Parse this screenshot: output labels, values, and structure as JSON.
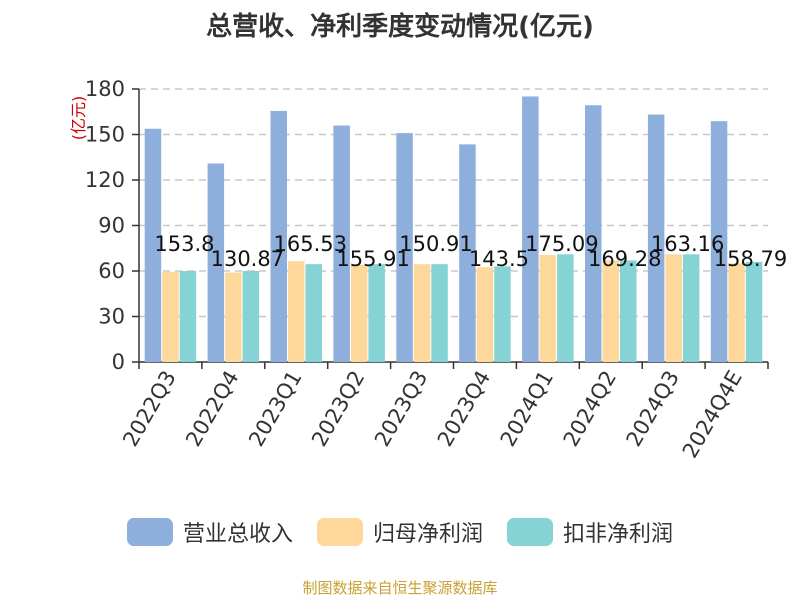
{
  "chart_data": {
    "type": "bar",
    "title": "总营收、净利季度变动情况(亿元)",
    "ylabel": "(亿元)",
    "ylim": [
      0,
      180
    ],
    "yticks": [
      0,
      30,
      60,
      90,
      120,
      150,
      180
    ],
    "grid": true,
    "legend_position": "bottom",
    "categories": [
      "2022Q3",
      "2022Q4",
      "2023Q1",
      "2023Q2",
      "2023Q3",
      "2023Q4",
      "2024Q1",
      "2024Q2",
      "2024Q3",
      "2024Q4E"
    ],
    "series": [
      {
        "name": "营业总收入",
        "color": "#8eafdc",
        "values": [
          153.8,
          130.87,
          165.53,
          155.91,
          150.91,
          143.5,
          175.09,
          169.28,
          163.16,
          158.79
        ],
        "data_labels": [
          "153.8",
          "130.87",
          "165.53",
          "155.91",
          "150.91",
          "143.5",
          "175.09",
          "169.28",
          "163.16",
          "158.79"
        ]
      },
      {
        "name": "归母净利润",
        "color": "#fdd89a",
        "values": [
          59.5,
          59,
          66.5,
          64,
          64.5,
          62.5,
          70.5,
          67,
          71,
          65
        ]
      },
      {
        "name": "扣非净利润",
        "color": "#86d3d5",
        "values": [
          60,
          60,
          64.5,
          64.5,
          64.5,
          63,
          71,
          67,
          71,
          66
        ]
      }
    ]
  },
  "source": "制图数据来自恒生聚源数据库"
}
